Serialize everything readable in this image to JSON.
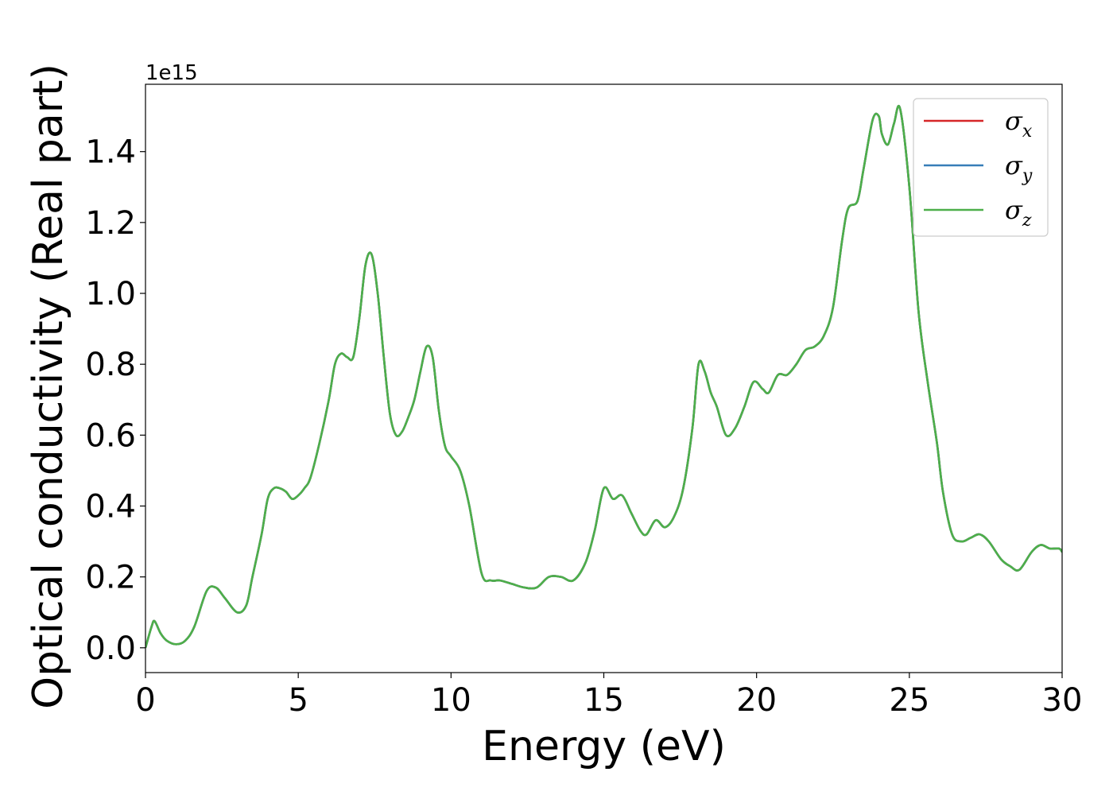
{
  "chart_data": {
    "type": "line",
    "xlabel": "Energy (eV)",
    "ylabel": "Optical conductivity (Real part)",
    "y_offset_label": "1e15",
    "y_scale": 1000000000000000.0,
    "xlim": [
      0,
      30
    ],
    "ylim": [
      -0.07,
      1.59
    ],
    "xticks": [
      0,
      5,
      10,
      15,
      20,
      25,
      30
    ],
    "xtick_labels": [
      "0",
      "5",
      "10",
      "15",
      "20",
      "25",
      "30"
    ],
    "yticks": [
      0.0,
      0.2,
      0.4,
      0.6,
      0.8,
      1.0,
      1.2,
      1.4
    ],
    "ytick_labels": [
      "0.0",
      "0.2",
      "0.4",
      "0.6",
      "0.8",
      "1.0",
      "1.2",
      "1.4"
    ],
    "grid": false,
    "legend_position": "top-right",
    "x": [
      0,
      0.2,
      0.3,
      0.5,
      0.7,
      1.0,
      1.3,
      1.6,
      2.0,
      2.3,
      2.6,
      3.0,
      3.3,
      3.5,
      3.8,
      4.0,
      4.2,
      4.4,
      4.6,
      4.8,
      5.0,
      5.2,
      5.4,
      5.7,
      6.0,
      6.2,
      6.4,
      6.6,
      6.8,
      7.0,
      7.2,
      7.4,
      7.6,
      7.8,
      8.0,
      8.2,
      8.4,
      8.6,
      8.8,
      9.0,
      9.2,
      9.4,
      9.6,
      9.8,
      10.0,
      10.3,
      10.6,
      11.0,
      11.3,
      11.6,
      12.0,
      12.4,
      12.8,
      13.2,
      13.6,
      14.0,
      14.4,
      14.7,
      15.0,
      15.3,
      15.6,
      15.9,
      16.2,
      16.4,
      16.7,
      17.0,
      17.3,
      17.6,
      17.9,
      18.1,
      18.3,
      18.5,
      18.7,
      19.0,
      19.3,
      19.6,
      19.9,
      20.2,
      20.4,
      20.7,
      21.0,
      21.3,
      21.6,
      21.9,
      22.2,
      22.5,
      22.8,
      23.0,
      23.3,
      23.5,
      23.8,
      24.0,
      24.1,
      24.3,
      24.5,
      24.7,
      25.0,
      25.3,
      25.6,
      25.9,
      26.1,
      26.4,
      26.7,
      27.0,
      27.3,
      27.6,
      28.0,
      28.3,
      28.6,
      29.0,
      29.3,
      29.6,
      29.9,
      30.0
    ],
    "series": [
      {
        "name": "σ_x",
        "label_main": "σ",
        "label_sub": "x",
        "color": "#d62728",
        "values": [
          0.0,
          0.06,
          0.075,
          0.04,
          0.02,
          0.01,
          0.02,
          0.06,
          0.16,
          0.17,
          0.14,
          0.1,
          0.12,
          0.2,
          0.32,
          0.42,
          0.45,
          0.45,
          0.44,
          0.42,
          0.43,
          0.45,
          0.48,
          0.58,
          0.7,
          0.8,
          0.83,
          0.82,
          0.82,
          0.93,
          1.08,
          1.11,
          1.0,
          0.82,
          0.66,
          0.6,
          0.61,
          0.65,
          0.7,
          0.78,
          0.85,
          0.82,
          0.67,
          0.57,
          0.54,
          0.5,
          0.4,
          0.21,
          0.19,
          0.19,
          0.18,
          0.17,
          0.17,
          0.2,
          0.2,
          0.19,
          0.24,
          0.33,
          0.45,
          0.42,
          0.43,
          0.38,
          0.33,
          0.32,
          0.36,
          0.34,
          0.37,
          0.45,
          0.62,
          0.8,
          0.78,
          0.72,
          0.68,
          0.6,
          0.62,
          0.68,
          0.75,
          0.73,
          0.72,
          0.77,
          0.77,
          0.8,
          0.84,
          0.85,
          0.88,
          0.96,
          1.15,
          1.24,
          1.26,
          1.35,
          1.49,
          1.5,
          1.45,
          1.42,
          1.48,
          1.52,
          1.3,
          0.95,
          0.75,
          0.58,
          0.44,
          0.32,
          0.3,
          0.31,
          0.32,
          0.3,
          0.25,
          0.23,
          0.22,
          0.27,
          0.29,
          0.28,
          0.28,
          0.27
        ]
      },
      {
        "name": "σ_y",
        "label_main": "σ",
        "label_sub": "y",
        "color": "#377eb8",
        "values": [
          0.0,
          0.06,
          0.075,
          0.04,
          0.02,
          0.01,
          0.02,
          0.06,
          0.16,
          0.17,
          0.14,
          0.1,
          0.12,
          0.2,
          0.32,
          0.42,
          0.45,
          0.45,
          0.44,
          0.42,
          0.43,
          0.45,
          0.48,
          0.58,
          0.7,
          0.8,
          0.83,
          0.82,
          0.82,
          0.93,
          1.08,
          1.11,
          1.0,
          0.82,
          0.66,
          0.6,
          0.61,
          0.65,
          0.7,
          0.78,
          0.85,
          0.82,
          0.67,
          0.57,
          0.54,
          0.5,
          0.4,
          0.21,
          0.19,
          0.19,
          0.18,
          0.17,
          0.17,
          0.2,
          0.2,
          0.19,
          0.24,
          0.33,
          0.45,
          0.42,
          0.43,
          0.38,
          0.33,
          0.32,
          0.36,
          0.34,
          0.37,
          0.45,
          0.62,
          0.8,
          0.78,
          0.72,
          0.68,
          0.6,
          0.62,
          0.68,
          0.75,
          0.73,
          0.72,
          0.77,
          0.77,
          0.8,
          0.84,
          0.85,
          0.88,
          0.96,
          1.15,
          1.24,
          1.26,
          1.35,
          1.49,
          1.5,
          1.45,
          1.42,
          1.48,
          1.52,
          1.3,
          0.95,
          0.75,
          0.58,
          0.44,
          0.32,
          0.3,
          0.31,
          0.32,
          0.3,
          0.25,
          0.23,
          0.22,
          0.27,
          0.29,
          0.28,
          0.28,
          0.27
        ]
      },
      {
        "name": "σ_z",
        "label_main": "σ",
        "label_sub": "z",
        "color": "#4daf4a",
        "values": [
          0.0,
          0.06,
          0.075,
          0.04,
          0.02,
          0.01,
          0.02,
          0.06,
          0.16,
          0.17,
          0.14,
          0.1,
          0.12,
          0.2,
          0.32,
          0.42,
          0.45,
          0.45,
          0.44,
          0.42,
          0.43,
          0.45,
          0.48,
          0.58,
          0.7,
          0.8,
          0.83,
          0.82,
          0.82,
          0.93,
          1.08,
          1.11,
          1.0,
          0.82,
          0.66,
          0.6,
          0.61,
          0.65,
          0.7,
          0.78,
          0.85,
          0.82,
          0.67,
          0.57,
          0.54,
          0.5,
          0.4,
          0.21,
          0.19,
          0.19,
          0.18,
          0.17,
          0.17,
          0.2,
          0.2,
          0.19,
          0.24,
          0.33,
          0.45,
          0.42,
          0.43,
          0.38,
          0.33,
          0.32,
          0.36,
          0.34,
          0.37,
          0.45,
          0.62,
          0.8,
          0.78,
          0.72,
          0.68,
          0.6,
          0.62,
          0.68,
          0.75,
          0.73,
          0.72,
          0.77,
          0.77,
          0.8,
          0.84,
          0.85,
          0.88,
          0.96,
          1.15,
          1.24,
          1.26,
          1.35,
          1.49,
          1.5,
          1.45,
          1.42,
          1.48,
          1.52,
          1.3,
          0.95,
          0.75,
          0.58,
          0.44,
          0.32,
          0.3,
          0.31,
          0.32,
          0.3,
          0.25,
          0.23,
          0.22,
          0.27,
          0.29,
          0.28,
          0.28,
          0.27
        ]
      }
    ]
  }
}
